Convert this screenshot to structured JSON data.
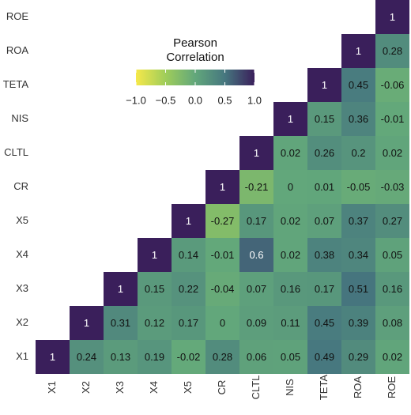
{
  "chart_data": {
    "type": "heatmap",
    "x": [
      "X1",
      "X2",
      "X3",
      "X4",
      "X5",
      "CR",
      "CLTL",
      "NIS",
      "TETA",
      "ROA",
      "ROE"
    ],
    "y": [
      "X1",
      "X2",
      "X3",
      "X4",
      "X5",
      "CR",
      "CLTL",
      "NIS",
      "TETA",
      "ROA",
      "ROE"
    ],
    "values": [
      [
        1,
        0.24,
        0.13,
        0.19,
        -0.02,
        0.28,
        0.06,
        0.05,
        0.49,
        0.29,
        0.02
      ],
      [
        null,
        1,
        0.31,
        0.12,
        0.17,
        0,
        0.09,
        0.11,
        0.45,
        0.39,
        0.08
      ],
      [
        null,
        null,
        1,
        0.15,
        0.22,
        -0.04,
        0.07,
        0.16,
        0.17,
        0.51,
        0.16
      ],
      [
        null,
        null,
        null,
        1,
        0.14,
        -0.01,
        0.6,
        0.02,
        0.38,
        0.34,
        0.05
      ],
      [
        null,
        null,
        null,
        null,
        1,
        -0.27,
        0.17,
        0.02,
        0.07,
        0.37,
        0.27
      ],
      [
        null,
        null,
        null,
        null,
        null,
        1,
        -0.21,
        0,
        0.01,
        -0.05,
        -0.03
      ],
      [
        null,
        null,
        null,
        null,
        null,
        null,
        1,
        0.02,
        0.26,
        0.2,
        0.02
      ],
      [
        null,
        null,
        null,
        null,
        null,
        null,
        null,
        1,
        0.15,
        0.36,
        -0.01
      ],
      [
        null,
        null,
        null,
        null,
        null,
        null,
        null,
        null,
        1,
        0.45,
        -0.06
      ],
      [
        null,
        null,
        null,
        null,
        null,
        null,
        null,
        null,
        null,
        1,
        0.28
      ],
      [
        null,
        null,
        null,
        null,
        null,
        null,
        null,
        null,
        null,
        null,
        1
      ]
    ],
    "colorbar": {
      "title": [
        "Pearson",
        "Correlation"
      ],
      "clim": [
        -1,
        1
      ],
      "colors": [
        "#f6e84a",
        "#9fcd5a",
        "#62a77b",
        "#46777f",
        "#3a1f5b"
      ],
      "ticks": [
        {
          "value": -1,
          "label": "−1.0"
        },
        {
          "value": -0.5,
          "label": "−0.5"
        },
        {
          "value": 0,
          "label": "0.0"
        },
        0.5,
        {
          "value": 1,
          "label": "1.0"
        }
      ]
    }
  }
}
